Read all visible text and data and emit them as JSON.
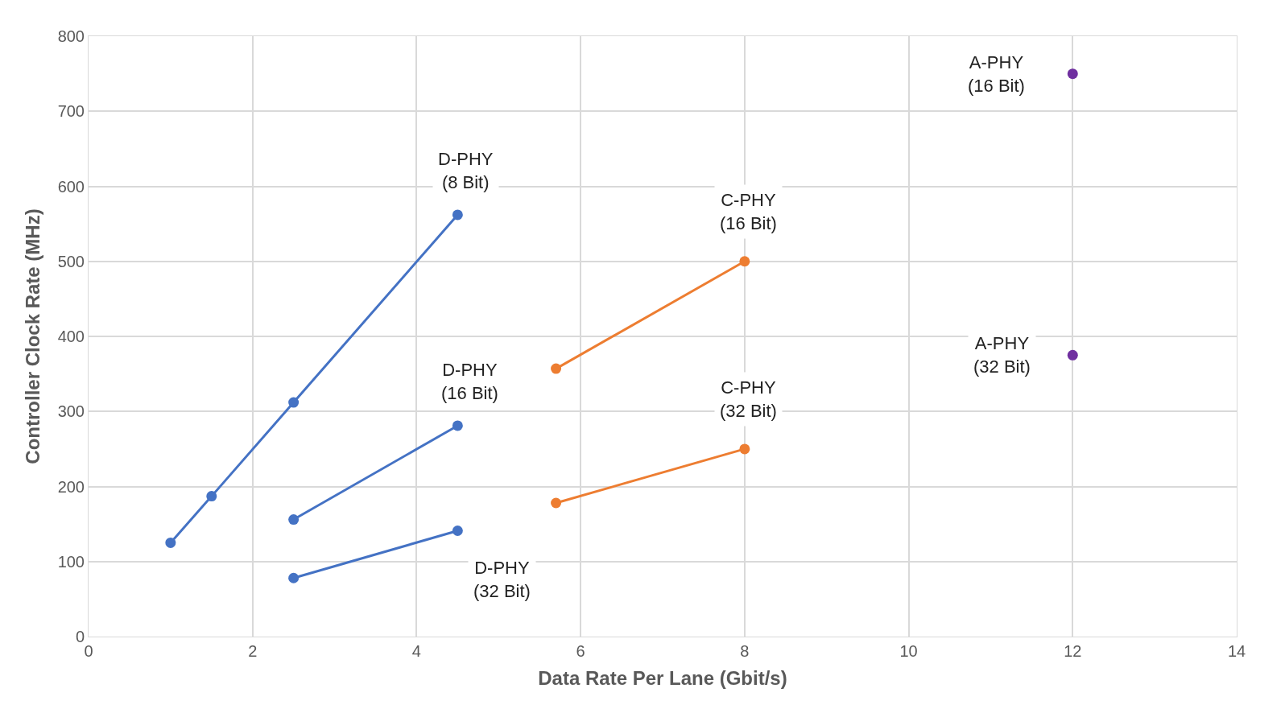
{
  "chart_data": {
    "type": "line",
    "xlabel": "Data Rate Per Lane (Gbit/s)",
    "ylabel": "Controller Clock Rate (MHz)",
    "xlim": [
      0,
      14
    ],
    "xticks": [
      0,
      2,
      4,
      6,
      8,
      10,
      12,
      14
    ],
    "ylim": [
      0,
      800
    ],
    "yticks": [
      0,
      100,
      200,
      300,
      400,
      500,
      600,
      700,
      800
    ],
    "grid": true,
    "legend": false,
    "marker": "circle",
    "line_style": "solid",
    "series": [
      {
        "name": "D-PHY\n(8 Bit)",
        "color": "#4472c4",
        "x": [
          1,
          1.5,
          2.5,
          4.5
        ],
        "values": [
          125,
          187,
          312,
          562
        ]
      },
      {
        "name": "D-PHY\n(16 Bit)",
        "color": "#4472c4",
        "x": [
          2.5,
          4.5
        ],
        "values": [
          156,
          281
        ]
      },
      {
        "name": "D-PHY\n(32 Bit)",
        "color": "#4472c4",
        "x": [
          2.5,
          4.5
        ],
        "values": [
          78,
          141
        ]
      },
      {
        "name": "C-PHY\n(16 Bit)",
        "color": "#ed7d31",
        "x": [
          5.7,
          8
        ],
        "values": [
          357,
          500
        ]
      },
      {
        "name": "C-PHY\n(32 Bit)",
        "color": "#ed7d31",
        "x": [
          5.7,
          8
        ],
        "values": [
          178,
          250
        ]
      },
      {
        "name": "A-PHY\n(16 Bit)",
        "color": "#7030a0",
        "type": "scatter",
        "x": [
          12
        ],
        "values": [
          750
        ]
      },
      {
        "name": "A-PHY\n(32 Bit)",
        "color": "#7030a0",
        "type": "scatter",
        "x": [
          12
        ],
        "values": [
          375
        ]
      }
    ]
  }
}
